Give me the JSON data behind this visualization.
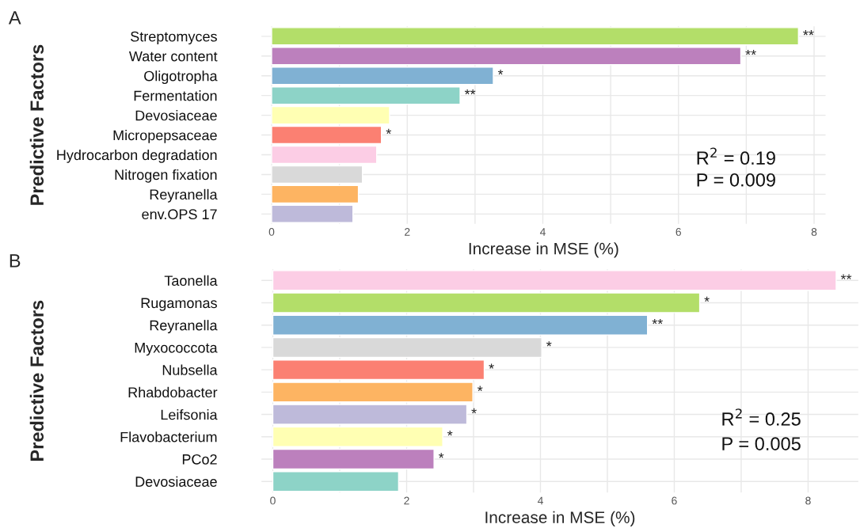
{
  "chart_data": [
    {
      "type": "bar",
      "orientation": "horizontal",
      "title": "A",
      "xlabel": "Increase in MSE (%)",
      "ylabel": "Predictive Factors",
      "categories": [
        "Streptomyces",
        "Water content",
        "Oligotropha",
        "Fermentation",
        "Devosiaceae",
        "Micropepsaceae",
        "Hydrocarbon degradation",
        "Nitrogen fixation",
        "Reyranella",
        "env.OPS 17"
      ],
      "values": [
        7.77,
        6.92,
        3.27,
        2.78,
        1.74,
        1.62,
        1.55,
        1.34,
        1.28,
        1.2
      ],
      "colors": [
        "#b3de69",
        "#bc80bd",
        "#80b1d3",
        "#8dd3c7",
        "#ffffb3",
        "#fb8072",
        "#fccde5",
        "#d9d9d9",
        "#fdb462",
        "#bebada"
      ],
      "value_labels": [
        "**",
        "**",
        "*",
        "**",
        null,
        "*",
        null,
        null,
        null,
        null
      ],
      "xlim": [
        -0.15,
        8.17
      ],
      "xticks": [
        0,
        {
          "value": 1,
          "label": null
        },
        2,
        {
          "value": 3,
          "label": null
        },
        4,
        {
          "value": 5,
          "label": null
        },
        6,
        {
          "value": 7,
          "label": null
        },
        8
      ],
      "grid": true,
      "annotations": [
        "R$^{2}$ = 0.19",
        "P = 0.009"
      ]
    },
    {
      "type": "bar",
      "orientation": "horizontal",
      "title": "B",
      "xlabel": "Increase in MSE (%)",
      "ylabel": "Predictive Factors",
      "categories": [
        "Taonella",
        "Rugamonas",
        "Reyranella",
        "Myxococcota",
        "Nubsella",
        "Rhabdobacter",
        "Leifsonia",
        "Flavobacterium",
        "PCo2",
        "Devosiaceae"
      ],
      "values": [
        8.42,
        6.38,
        5.6,
        4.02,
        3.16,
        2.99,
        2.9,
        2.54,
        2.41,
        1.88
      ],
      "colors": [
        "#fccde5",
        "#b3de69",
        "#80b1d3",
        "#d9d9d9",
        "#fb8072",
        "#fdb462",
        "#bebada",
        "#ffffb3",
        "#bc80bd",
        "#8dd3c7"
      ],
      "value_labels": [
        "**",
        "*",
        "**",
        "*",
        "*",
        "*",
        "*",
        "*",
        "*",
        null
      ],
      "xlim": [
        -0.17,
        8.75
      ],
      "xticks": [
        0,
        {
          "value": 1,
          "label": null
        },
        2,
        {
          "value": 3,
          "label": null
        },
        4,
        {
          "value": 5,
          "label": null
        },
        6,
        {
          "value": 7,
          "label": null
        },
        8
      ],
      "grid": true,
      "annotations": [
        "R$^{2}$ = 0.25",
        "P = 0.005"
      ]
    }
  ]
}
